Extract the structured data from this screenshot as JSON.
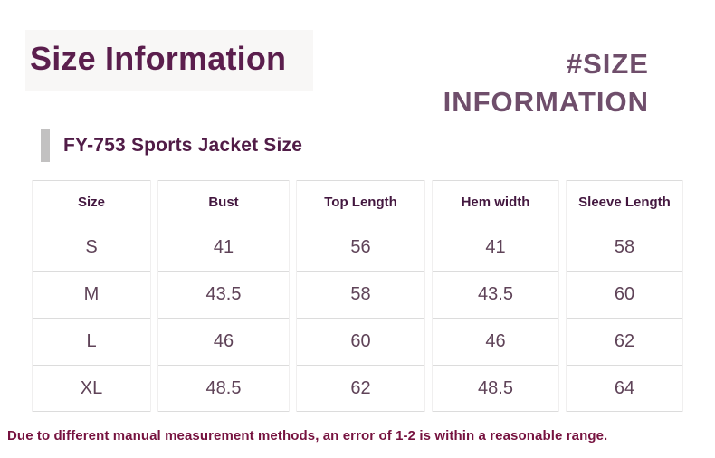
{
  "header": {
    "title": "Size Information",
    "hashtag_line1": "#SIZE",
    "hashtag_line2": "INFORMATION"
  },
  "section": {
    "heading": "FY-753 Sports Jacket Size"
  },
  "table": {
    "columns": [
      {
        "header": "Size",
        "values": [
          "S",
          "M",
          "L",
          "XL"
        ]
      },
      {
        "header": "Bust",
        "values": [
          "41",
          "43.5",
          "46",
          "48.5"
        ]
      },
      {
        "header": "Top Length",
        "values": [
          "56",
          "58",
          "60",
          "62"
        ]
      },
      {
        "header": "Hem width",
        "values": [
          "41",
          "43.5",
          "46",
          "48.5"
        ]
      },
      {
        "header": "Sleeve Length",
        "values": [
          "58",
          "60",
          "62",
          "64"
        ]
      }
    ]
  },
  "chart_data": {
    "type": "table",
    "title": "FY-753 Sports Jacket Size",
    "columns": [
      "Size",
      "Bust",
      "Top Length",
      "Hem width",
      "Sleeve Length"
    ],
    "rows": [
      [
        "S",
        "41",
        "56",
        "41",
        "58"
      ],
      [
        "M",
        "43.5",
        "58",
        "43.5",
        "60"
      ],
      [
        "L",
        "46",
        "60",
        "46",
        "62"
      ],
      [
        "XL",
        "48.5",
        "62",
        "48.5",
        "64"
      ]
    ]
  },
  "footnote": {
    "text": "Due to different manual measurement methods, an error of 1-2 is within a reasonable range."
  },
  "colors": {
    "title_purple": "#5b1e4d",
    "hashtag_purple": "#6f4e6b",
    "header_text": "#43173f",
    "cell_text": "#5f4358",
    "note_crimson": "#76123f",
    "divider_gray": "#dcdcdc",
    "marker_bar_gray": "#c2c1c1"
  }
}
